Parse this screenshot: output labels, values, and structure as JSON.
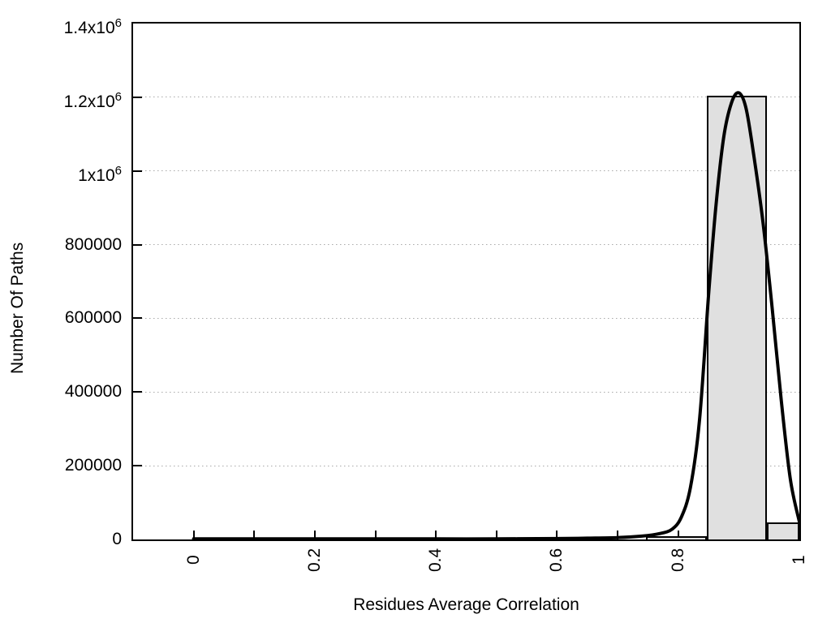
{
  "chart_data": {
    "type": "histogram",
    "title": "",
    "xlabel": "Residues Average Correlation",
    "ylabel": "Number Of Paths",
    "xlim": [
      -0.1,
      1.0
    ],
    "ylim": [
      0,
      1400000
    ],
    "grid": "horizontal-dotted",
    "legend": "none",
    "colors": {
      "bar_fill": "#e0e0e0",
      "bar_border": "#000000",
      "curve": "#000000",
      "grid": "#a9a9a9",
      "axis": "#000000"
    },
    "x_major_ticks": [
      {
        "value": 0,
        "label": "0"
      },
      {
        "value": 0.2,
        "label": "0.2"
      },
      {
        "value": 0.4,
        "label": "0.4"
      },
      {
        "value": 0.6,
        "label": "0.6"
      },
      {
        "value": 0.8,
        "label": "0.8"
      },
      {
        "value": 1.0,
        "label": "1"
      }
    ],
    "x_minor_ticks": [
      0.1,
      0.3,
      0.5,
      0.7,
      0.9
    ],
    "y_ticks": [
      {
        "value": 0,
        "base": "0",
        "sup": ""
      },
      {
        "value": 200000,
        "base": "200000",
        "sup": ""
      },
      {
        "value": 400000,
        "base": "400000",
        "sup": ""
      },
      {
        "value": 600000,
        "base": "600000",
        "sup": ""
      },
      {
        "value": 800000,
        "base": "800000",
        "sup": ""
      },
      {
        "value": 1000000,
        "base": "1x10",
        "sup": "6"
      },
      {
        "value": 1200000,
        "base": "1.2x10",
        "sup": "6"
      },
      {
        "value": 1400000,
        "base": "1.4x10",
        "sup": "6"
      }
    ],
    "bars": [
      {
        "x0": 0.747,
        "x1": 0.847,
        "value": 9000
      },
      {
        "x0": 0.847,
        "x1": 0.947,
        "value": 1205000
      },
      {
        "x0": 0.947,
        "x1": 1.0,
        "value": 46000
      }
    ],
    "curve_points": [
      [
        0.0,
        1500
      ],
      [
        0.1,
        1500
      ],
      [
        0.2,
        1500
      ],
      [
        0.3,
        1500
      ],
      [
        0.4,
        1500
      ],
      [
        0.5,
        1500
      ],
      [
        0.6,
        2500
      ],
      [
        0.65,
        3500
      ],
      [
        0.7,
        5000
      ],
      [
        0.74,
        9000
      ],
      [
        0.77,
        16000
      ],
      [
        0.79,
        28000
      ],
      [
        0.805,
        60000
      ],
      [
        0.82,
        140000
      ],
      [
        0.835,
        320000
      ],
      [
        0.85,
        660000
      ],
      [
        0.862,
        900000
      ],
      [
        0.875,
        1090000
      ],
      [
        0.888,
        1185000
      ],
      [
        0.9,
        1212000
      ],
      [
        0.912,
        1170000
      ],
      [
        0.925,
        1040000
      ],
      [
        0.94,
        860000
      ],
      [
        0.955,
        630000
      ],
      [
        0.97,
        380000
      ],
      [
        0.985,
        165000
      ],
      [
        1.0,
        48000
      ]
    ]
  }
}
